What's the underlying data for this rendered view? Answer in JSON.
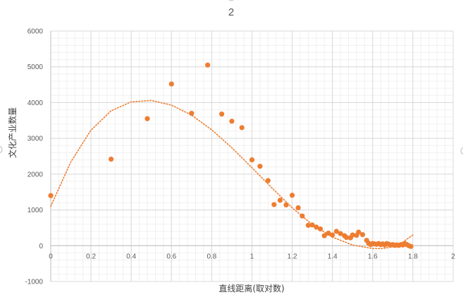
{
  "chart_data": {
    "type": "scatter",
    "title": "2",
    "xlabel": "直线距离(取对数)",
    "ylabel": "文化产业数量",
    "xlim": [
      0,
      2
    ],
    "ylim": [
      -1000,
      6000
    ],
    "x_ticks": [
      "0",
      "0.2",
      "0.4",
      "0.6",
      "0.8",
      "1",
      "1.2",
      "1.4",
      "1.6",
      "1.8",
      "2"
    ],
    "y_ticks": [
      "-1000",
      "0",
      "1000",
      "2000",
      "3000",
      "4000",
      "5000",
      "6000"
    ],
    "grid": true,
    "series": [
      {
        "color": "#ED7D31",
        "points": [
          [
            0.0,
            1400
          ],
          [
            0.3,
            2420
          ],
          [
            0.48,
            3550
          ],
          [
            0.6,
            4520
          ],
          [
            0.7,
            3700
          ],
          [
            0.78,
            5050
          ],
          [
            0.85,
            3680
          ],
          [
            0.9,
            3480
          ],
          [
            0.95,
            3300
          ],
          [
            1.0,
            2400
          ],
          [
            1.04,
            2220
          ],
          [
            1.08,
            1820
          ],
          [
            1.11,
            1150
          ],
          [
            1.14,
            1270
          ],
          [
            1.17,
            1140
          ],
          [
            1.2,
            1410
          ],
          [
            1.23,
            1060
          ],
          [
            1.25,
            830
          ],
          [
            1.28,
            570
          ],
          [
            1.3,
            580
          ],
          [
            1.32,
            520
          ],
          [
            1.34,
            470
          ],
          [
            1.36,
            280
          ],
          [
            1.38,
            350
          ],
          [
            1.4,
            300
          ],
          [
            1.42,
            400
          ],
          [
            1.44,
            340
          ],
          [
            1.46,
            280
          ],
          [
            1.47,
            230
          ],
          [
            1.49,
            220
          ],
          [
            1.5,
            300
          ],
          [
            1.52,
            290
          ],
          [
            1.53,
            380
          ],
          [
            1.55,
            310
          ],
          [
            1.57,
            150
          ],
          [
            1.58,
            70
          ],
          [
            1.59,
            30
          ],
          [
            1.6,
            60
          ],
          [
            1.61,
            50
          ],
          [
            1.62,
            40
          ],
          [
            1.63,
            60
          ],
          [
            1.64,
            30
          ],
          [
            1.65,
            50
          ],
          [
            1.66,
            20
          ],
          [
            1.67,
            60
          ],
          [
            1.68,
            40
          ],
          [
            1.69,
            20
          ],
          [
            1.7,
            30
          ],
          [
            1.71,
            10
          ],
          [
            1.72,
            20
          ],
          [
            1.73,
            10
          ],
          [
            1.74,
            30
          ],
          [
            1.75,
            20
          ],
          [
            1.76,
            60
          ],
          [
            1.77,
            30
          ],
          [
            1.78,
            0
          ],
          [
            1.79,
            -20
          ]
        ]
      }
    ],
    "trendline": {
      "type": "polynomial",
      "color": "#ED7D31",
      "style": "dotted",
      "points": [
        [
          0.0,
          1100
        ],
        [
          0.1,
          2340
        ],
        [
          0.2,
          3230
        ],
        [
          0.3,
          3770
        ],
        [
          0.4,
          4020
        ],
        [
          0.5,
          4060
        ],
        [
          0.6,
          3930
        ],
        [
          0.7,
          3650
        ],
        [
          0.8,
          3240
        ],
        [
          0.9,
          2740
        ],
        [
          1.0,
          2180
        ],
        [
          1.1,
          1610
        ],
        [
          1.2,
          1060
        ],
        [
          1.3,
          590
        ],
        [
          1.4,
          240
        ],
        [
          1.5,
          20
        ],
        [
          1.6,
          -80
        ],
        [
          1.65,
          -80
        ],
        [
          1.7,
          -30
        ],
        [
          1.75,
          100
        ],
        [
          1.8,
          300
        ]
      ]
    }
  }
}
